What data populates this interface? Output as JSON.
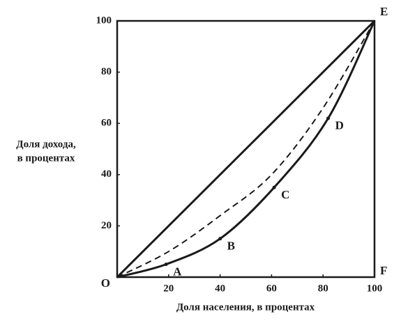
{
  "chart_data": {
    "type": "line",
    "ylabel": [
      "Доля дохода,",
      "в процентах"
    ],
    "xlabel": "Доля населения, в процентах",
    "xlim": [
      0,
      100
    ],
    "ylim": [
      0,
      100
    ],
    "xticks": [
      20,
      40,
      60,
      80,
      100
    ],
    "yticks": [
      20,
      40,
      60,
      80,
      100
    ],
    "grid": false,
    "series": [
      {
        "color": "#1a1a1a",
        "style": "solid",
        "x": [
          0,
          100
        ],
        "values": [
          0,
          100
        ]
      },
      {
        "color": "#1a1a1a",
        "style": "dashed",
        "x": [
          0,
          20,
          40,
          60,
          80,
          100
        ],
        "values": [
          0,
          10,
          24,
          40,
          66,
          100
        ]
      },
      {
        "color": "#1a1a1a",
        "style": "solid",
        "x": [
          0,
          19,
          40,
          61,
          82,
          100
        ],
        "values": [
          0,
          5,
          15,
          35,
          62,
          100
        ],
        "point_labels": [
          null,
          "A",
          "B",
          "C",
          "D",
          null
        ]
      }
    ],
    "annotations": [
      {
        "text": "O",
        "x": 0,
        "y": 0
      },
      {
        "text": "E",
        "x": 100,
        "y": 100
      },
      {
        "text": "F",
        "x": 100,
        "y": 0
      }
    ]
  }
}
